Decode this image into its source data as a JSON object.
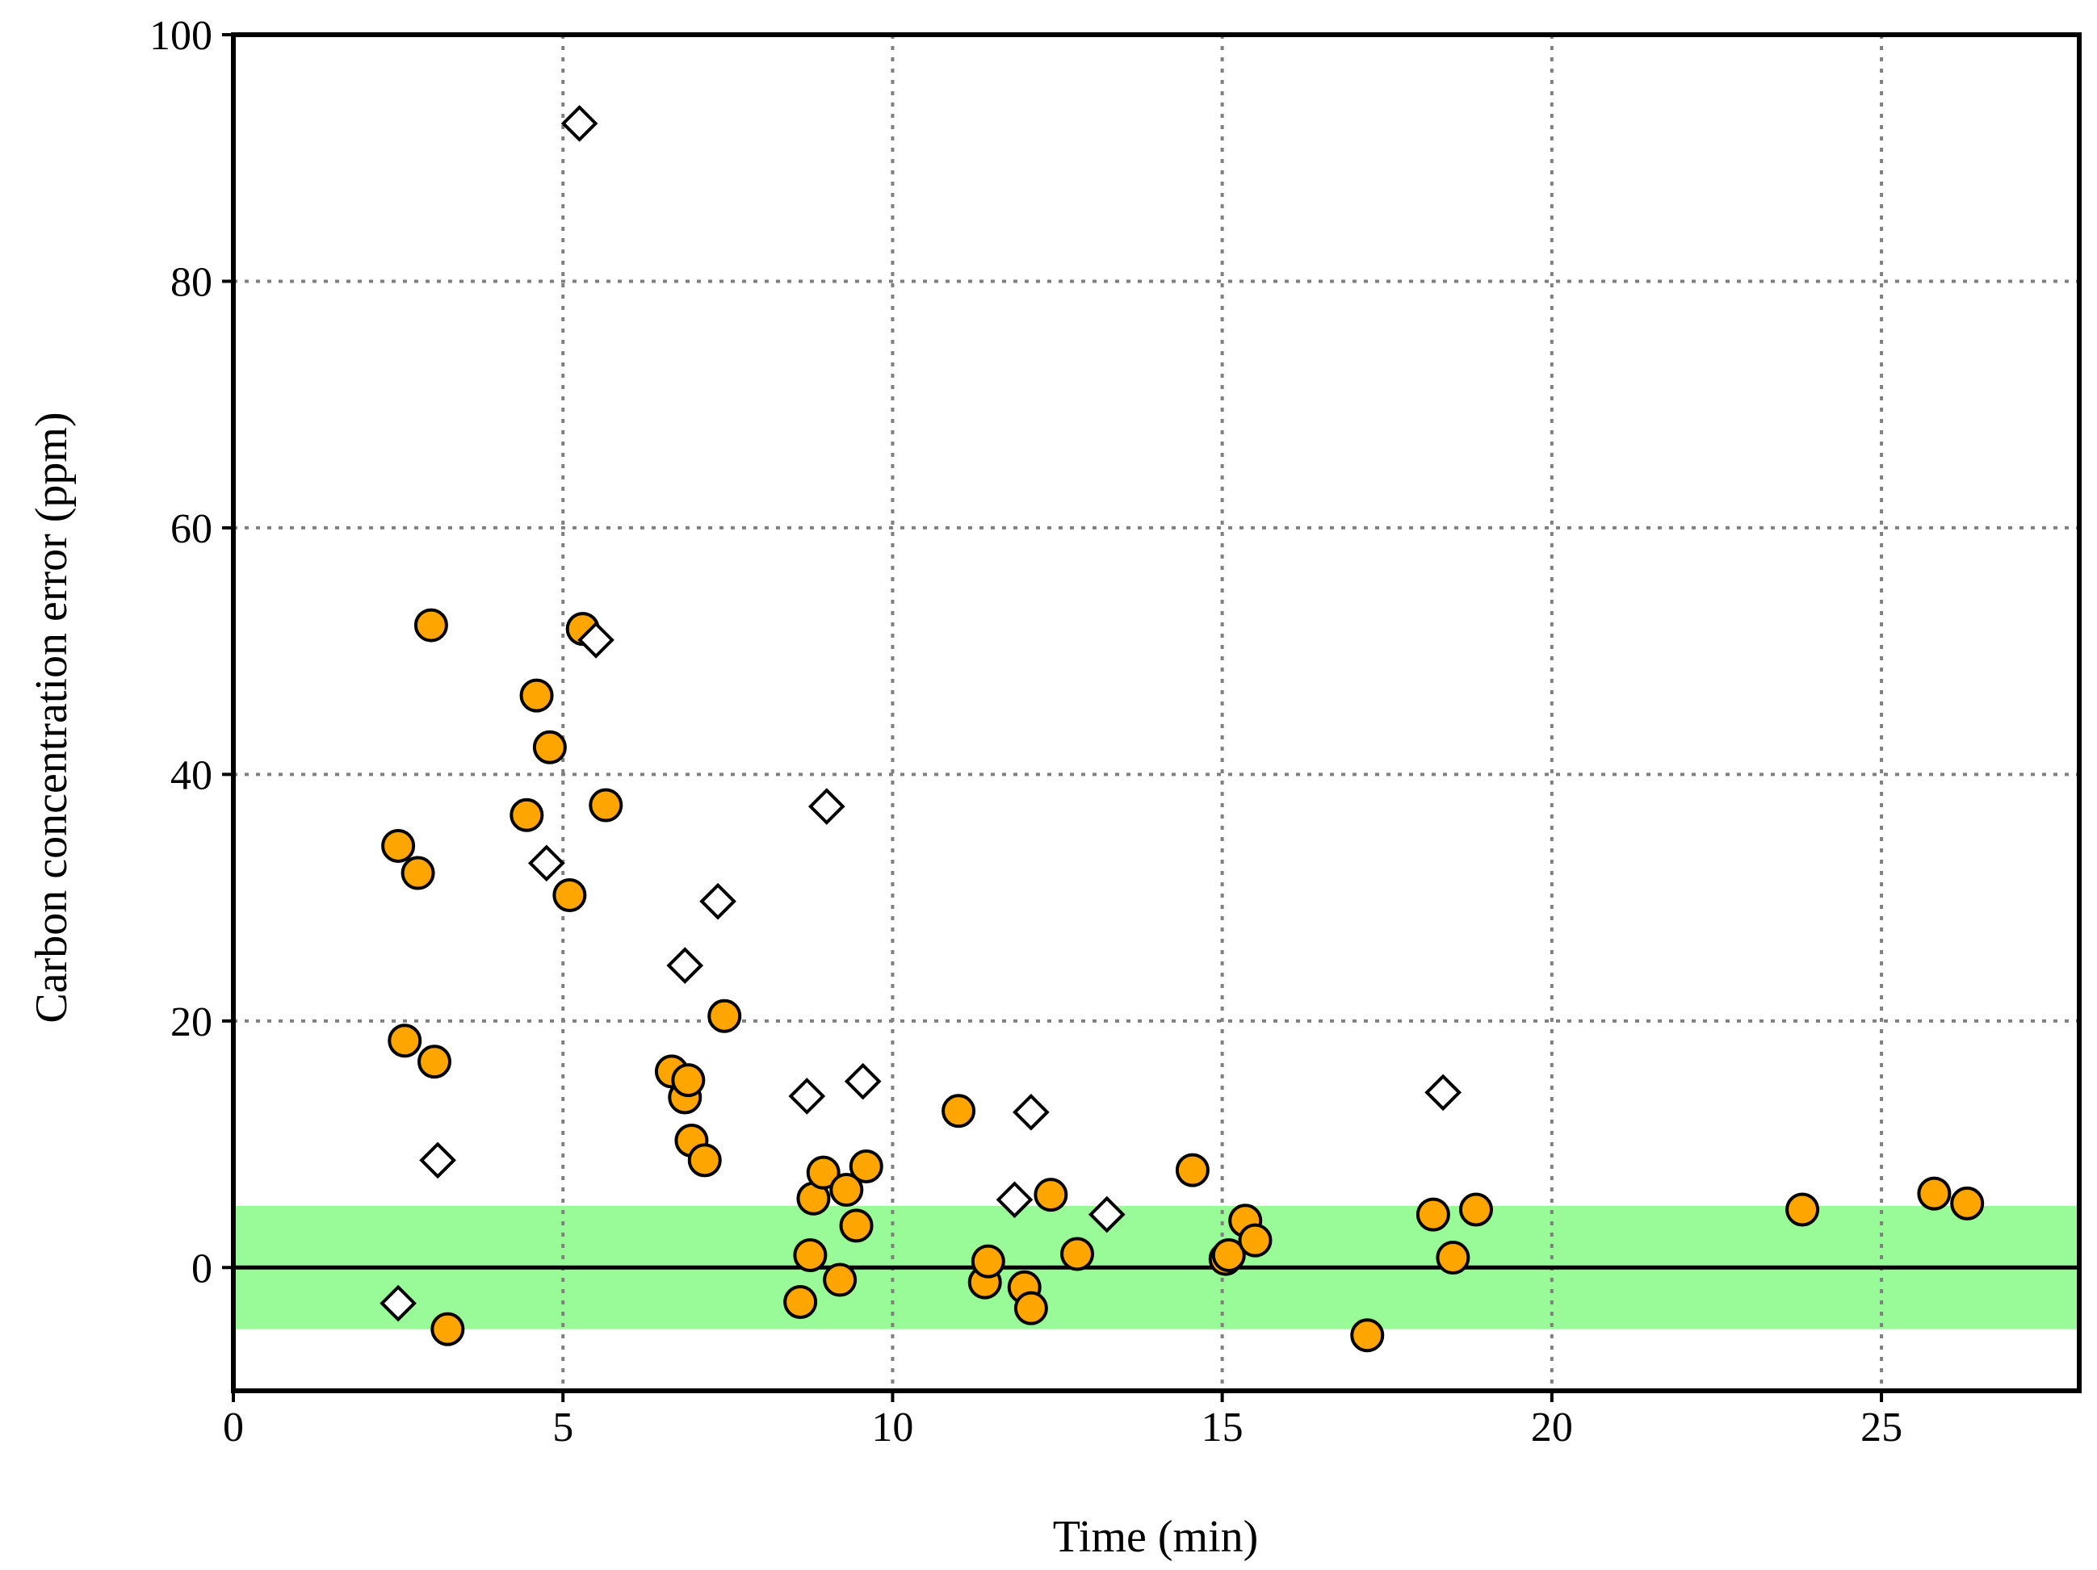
{
  "chart_data": {
    "type": "scatter",
    "xlabel": "Time (min)",
    "ylabel": "Carbon concentration error (ppm)",
    "xlim": [
      0,
      28
    ],
    "ylim": [
      -10,
      100
    ],
    "xticks": [
      0,
      5,
      10,
      15,
      20,
      25
    ],
    "yticks": [
      0,
      20,
      40,
      60,
      80,
      100
    ],
    "xtick_labels": [
      "0",
      "5",
      "10",
      "15",
      "20",
      "25"
    ],
    "ytick_labels": [
      "0",
      "20",
      "40",
      "60",
      "80",
      "100"
    ],
    "grid": true,
    "zero_line": 0,
    "tolerance_band": [
      -5,
      5
    ],
    "colors": {
      "band": "#98fb98",
      "circle_fill": "#ffa500",
      "marker_edge": "#000000",
      "diamond_fill": "#ffffff",
      "grid": "#808080"
    },
    "series": [
      {
        "name": "circles",
        "marker": "circle",
        "points": [
          [
            2.5,
            34.2
          ],
          [
            2.8,
            32.0
          ],
          [
            2.6,
            18.4
          ],
          [
            3.0,
            52.1
          ],
          [
            3.05,
            16.7
          ],
          [
            3.25,
            -5.0
          ],
          [
            4.45,
            36.7
          ],
          [
            4.6,
            46.4
          ],
          [
            4.8,
            42.2
          ],
          [
            5.1,
            30.2
          ],
          [
            5.3,
            51.8
          ],
          [
            5.65,
            37.5
          ],
          [
            6.65,
            15.9
          ],
          [
            6.85,
            13.8
          ],
          [
            6.9,
            15.2
          ],
          [
            6.95,
            10.3
          ],
          [
            7.15,
            8.7
          ],
          [
            7.45,
            20.4
          ],
          [
            8.6,
            -2.8
          ],
          [
            8.75,
            1.0
          ],
          [
            8.8,
            5.6
          ],
          [
            8.95,
            7.7
          ],
          [
            9.2,
            -1.0
          ],
          [
            9.3,
            6.3
          ],
          [
            9.45,
            3.4
          ],
          [
            9.6,
            8.2
          ],
          [
            11.0,
            12.7
          ],
          [
            11.4,
            -1.2
          ],
          [
            11.45,
            0.5
          ],
          [
            12.0,
            -1.6
          ],
          [
            12.1,
            -3.3
          ],
          [
            12.4,
            5.9
          ],
          [
            12.8,
            1.1
          ],
          [
            14.55,
            7.9
          ],
          [
            15.05,
            0.7
          ],
          [
            15.1,
            1.0
          ],
          [
            15.35,
            3.8
          ],
          [
            15.5,
            2.2
          ],
          [
            17.2,
            -5.5
          ],
          [
            18.2,
            4.3
          ],
          [
            18.5,
            0.8
          ],
          [
            18.85,
            4.7
          ],
          [
            23.8,
            4.7
          ],
          [
            25.8,
            6.0
          ],
          [
            26.3,
            5.2
          ]
        ]
      },
      {
        "name": "diamonds",
        "marker": "diamond",
        "points": [
          [
            2.5,
            -2.9
          ],
          [
            3.1,
            8.7
          ],
          [
            4.75,
            32.8
          ],
          [
            5.25,
            92.8
          ],
          [
            5.5,
            50.9
          ],
          [
            6.85,
            24.5
          ],
          [
            7.35,
            29.7
          ],
          [
            8.7,
            13.9
          ],
          [
            9.0,
            37.4
          ],
          [
            9.55,
            15.1
          ],
          [
            11.85,
            5.5
          ],
          [
            12.1,
            12.6
          ],
          [
            13.25,
            4.3
          ],
          [
            18.35,
            14.2
          ]
        ]
      }
    ]
  }
}
